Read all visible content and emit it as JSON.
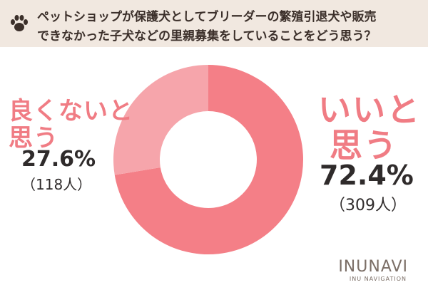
{
  "header": {
    "question_line1": "ペットショップが保護犬としてブリーダーの繁殖引退犬や販売",
    "question_line2": "できなかった子犬などの里親募集をしていることをどう思う？",
    "icon": "paw-icon"
  },
  "labels": {
    "negative_line1": "良くないと",
    "negative_line2": "思う",
    "negative_percent": "27.6%",
    "negative_count": "（118人）",
    "positive_line1": "いいと",
    "positive_line2": "思う",
    "positive_percent": "72.4%",
    "positive_count": "（309人）"
  },
  "brand": {
    "name": "INUNAVI",
    "subtitle": "INU NAVIGATION"
  },
  "chart_data": {
    "type": "pie",
    "categories": [
      "いいと思う",
      "良くないと思う"
    ],
    "values": [
      72.4,
      27.6
    ],
    "counts": [
      309,
      118
    ],
    "unit": "%",
    "colors": [
      "#f47f87",
      "#f6a5ab"
    ],
    "donut": true
  }
}
